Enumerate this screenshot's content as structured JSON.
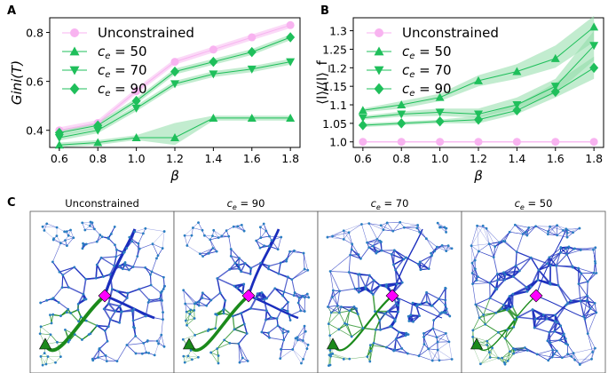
{
  "panel_labels": {
    "a": "A",
    "b": "B",
    "c": "C"
  },
  "colors": {
    "unconstrained": "#f8b3f0",
    "constrained": "#1fbf5b",
    "band": "#8fdca8",
    "node": "#2a7ec2",
    "edge_blue": "#1a2dbd",
    "edge_green": "#1b8a1b",
    "hub": "#ff00ff"
  },
  "chart_data": [
    {
      "type": "line",
      "panel": "A",
      "xlabel": "β",
      "ylabel": "Gini(T)",
      "x": [
        0.6,
        0.8,
        1.0,
        1.2,
        1.4,
        1.6,
        1.8
      ],
      "xticks": [
        "0.6",
        "0.8",
        "1.0",
        "1.2",
        "1.4",
        "1.6",
        "1.8"
      ],
      "yticks": [
        "0.4",
        "0.6",
        "0.8"
      ],
      "ylim": [
        0.33,
        0.86
      ],
      "legend_position": "top-left",
      "series": [
        {
          "name": "Unconstrained",
          "marker": "circle",
          "values": [
            0.4,
            0.43,
            0.56,
            0.68,
            0.73,
            0.78,
            0.83
          ],
          "band": 0.012
        },
        {
          "name": "c_e = 50",
          "marker": "triangle-up",
          "values": [
            0.34,
            0.35,
            0.37,
            0.37,
            0.45,
            0.45,
            0.45
          ],
          "band_low": [
            0.33,
            0.34,
            0.36,
            0.34,
            0.44,
            0.44,
            0.44
          ],
          "band_high": [
            0.35,
            0.36,
            0.38,
            0.43,
            0.46,
            0.46,
            0.46
          ]
        },
        {
          "name": "c_e = 70",
          "marker": "triangle-down",
          "values": [
            0.37,
            0.4,
            0.49,
            0.59,
            0.63,
            0.65,
            0.68
          ],
          "band": 0.012
        },
        {
          "name": "c_e = 90",
          "marker": "diamond",
          "values": [
            0.39,
            0.42,
            0.52,
            0.64,
            0.68,
            0.72,
            0.78
          ],
          "band": 0.012
        }
      ]
    },
    {
      "type": "line",
      "panel": "B",
      "xlabel": "β",
      "ylabel": "⟨l⟩/⟨l⟩_f",
      "x": [
        0.6,
        0.8,
        1.0,
        1.2,
        1.4,
        1.6,
        1.8
      ],
      "xticks": [
        "0.6",
        "0.8",
        "1.0",
        "1.2",
        "1.4",
        "1.6",
        "1.8"
      ],
      "yticks": [
        "1.0",
        "1.05",
        "1.1",
        "1.15",
        "1.2",
        "1.25",
        "1.3"
      ],
      "ylim": [
        0.985,
        1.335
      ],
      "legend_position": "top-left",
      "series": [
        {
          "name": "Unconstrained",
          "marker": "circle",
          "values": [
            1.0,
            1.0,
            1.0,
            1.0,
            1.0,
            1.0,
            1.0
          ],
          "band": 0.002
        },
        {
          "name": "c_e = 50",
          "marker": "triangle-up",
          "values": [
            1.085,
            1.1,
            1.12,
            1.165,
            1.19,
            1.225,
            1.31
          ],
          "band_low": [
            1.08,
            1.09,
            1.11,
            1.15,
            1.17,
            1.2,
            1.27
          ],
          "band_high": [
            1.09,
            1.11,
            1.13,
            1.18,
            1.21,
            1.26,
            1.34
          ]
        },
        {
          "name": "c_e = 70",
          "marker": "triangle-down",
          "values": [
            1.065,
            1.075,
            1.08,
            1.075,
            1.1,
            1.15,
            1.26
          ],
          "band_low": [
            1.06,
            1.068,
            1.07,
            1.065,
            1.09,
            1.13,
            1.22
          ],
          "band_high": [
            1.07,
            1.082,
            1.09,
            1.09,
            1.12,
            1.17,
            1.3
          ]
        },
        {
          "name": "c_e = 90",
          "marker": "diamond",
          "values": [
            1.045,
            1.05,
            1.055,
            1.06,
            1.085,
            1.135,
            1.2
          ],
          "band_low": [
            1.04,
            1.045,
            1.05,
            1.05,
            1.075,
            1.12,
            1.17
          ],
          "band_high": [
            1.05,
            1.055,
            1.06,
            1.07,
            1.1,
            1.16,
            1.23
          ]
        }
      ]
    }
  ],
  "networks": {
    "titles": [
      "Unconstrained",
      "c_e = 90",
      "c_e = 70",
      "c_e = 50"
    ],
    "densities": [
      1.0,
      1.0,
      1.15,
      1.8
    ]
  }
}
